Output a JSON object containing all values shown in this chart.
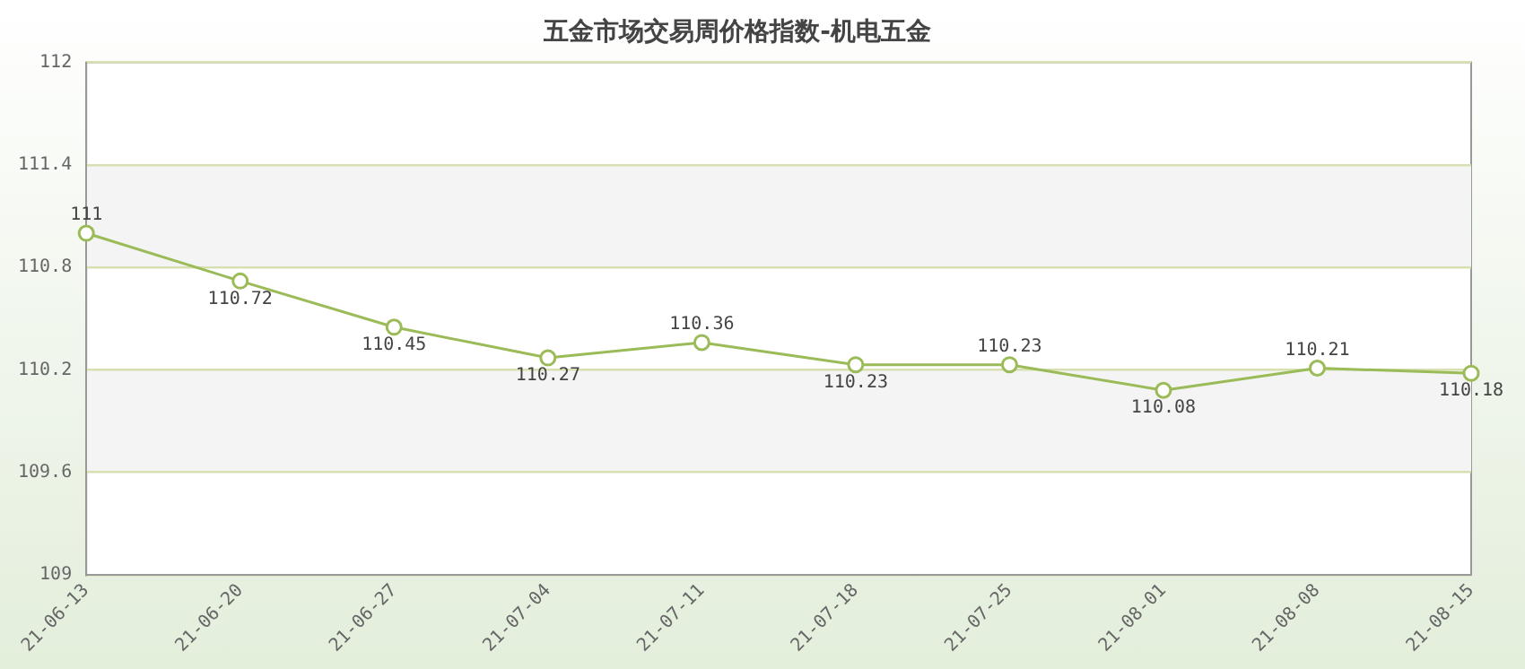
{
  "chart_data": {
    "type": "line",
    "title": "五金市场交易周价格指数-机电五金",
    "categories": [
      "21-06-13",
      "21-06-20",
      "21-06-27",
      "21-07-04",
      "21-07-11",
      "21-07-18",
      "21-07-25",
      "21-08-01",
      "21-08-08",
      "21-08-15"
    ],
    "series": [
      {
        "color": "#9bbb59",
        "values": [
          111,
          110.72,
          110.45,
          110.27,
          110.36,
          110.23,
          110.23,
          110.08,
          110.21,
          110.18
        ]
      }
    ],
    "ylim": [
      109,
      112
    ],
    "yticks": [
      109,
      109.6,
      110.2,
      110.8,
      111.4,
      112
    ],
    "grid": "y",
    "legend": false,
    "marker": "circle",
    "line_style": "solid",
    "data_labels": true
  }
}
